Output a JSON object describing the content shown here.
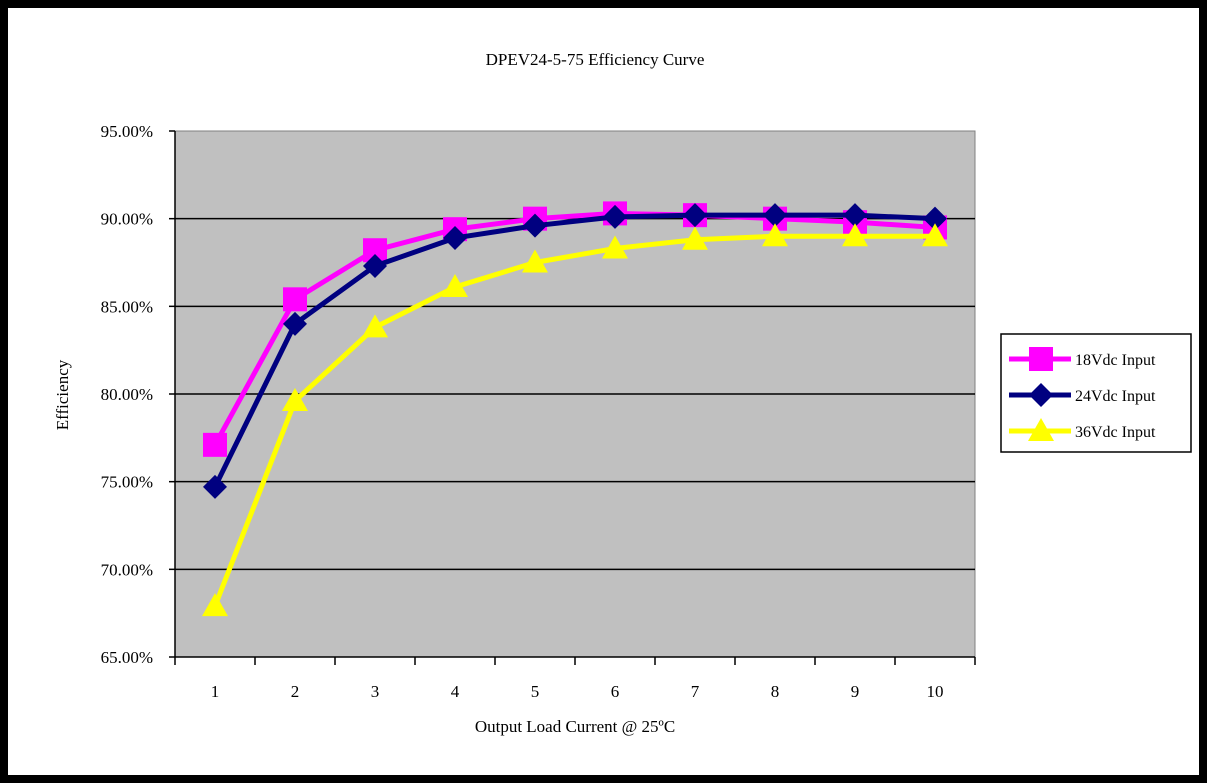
{
  "chart_data": {
    "type": "line",
    "title": "DPEV24-5-75 Efficiency Curve",
    "xlabel": "Output Load Current @ 25ºC",
    "ylabel": "Efficiency",
    "categories": [
      "1",
      "2",
      "3",
      "4",
      "5",
      "6",
      "7",
      "8",
      "9",
      "10"
    ],
    "y_ticks": [
      "65.00%",
      "70.00%",
      "75.00%",
      "80.00%",
      "85.00%",
      "90.00%",
      "95.00%"
    ],
    "ylim": [
      65,
      95
    ],
    "grid": true,
    "legend_position": "right",
    "plot_background": "#c0c0c0",
    "series": [
      {
        "name": "18Vdc Input",
        "color": "#ff00ff",
        "marker": "square",
        "values": [
          77.1,
          85.4,
          88.2,
          89.4,
          90.0,
          90.3,
          90.2,
          90.0,
          89.8,
          89.5
        ]
      },
      {
        "name": "24Vdc Input",
        "color": "#000080",
        "marker": "diamond",
        "values": [
          74.7,
          84.0,
          87.3,
          88.9,
          89.6,
          90.1,
          90.2,
          90.2,
          90.2,
          90.0
        ]
      },
      {
        "name": "36Vdc Input",
        "color": "#ffff00",
        "marker": "triangle",
        "values": [
          67.9,
          79.6,
          83.8,
          86.1,
          87.5,
          88.3,
          88.8,
          89.0,
          89.0,
          89.0
        ]
      }
    ]
  }
}
